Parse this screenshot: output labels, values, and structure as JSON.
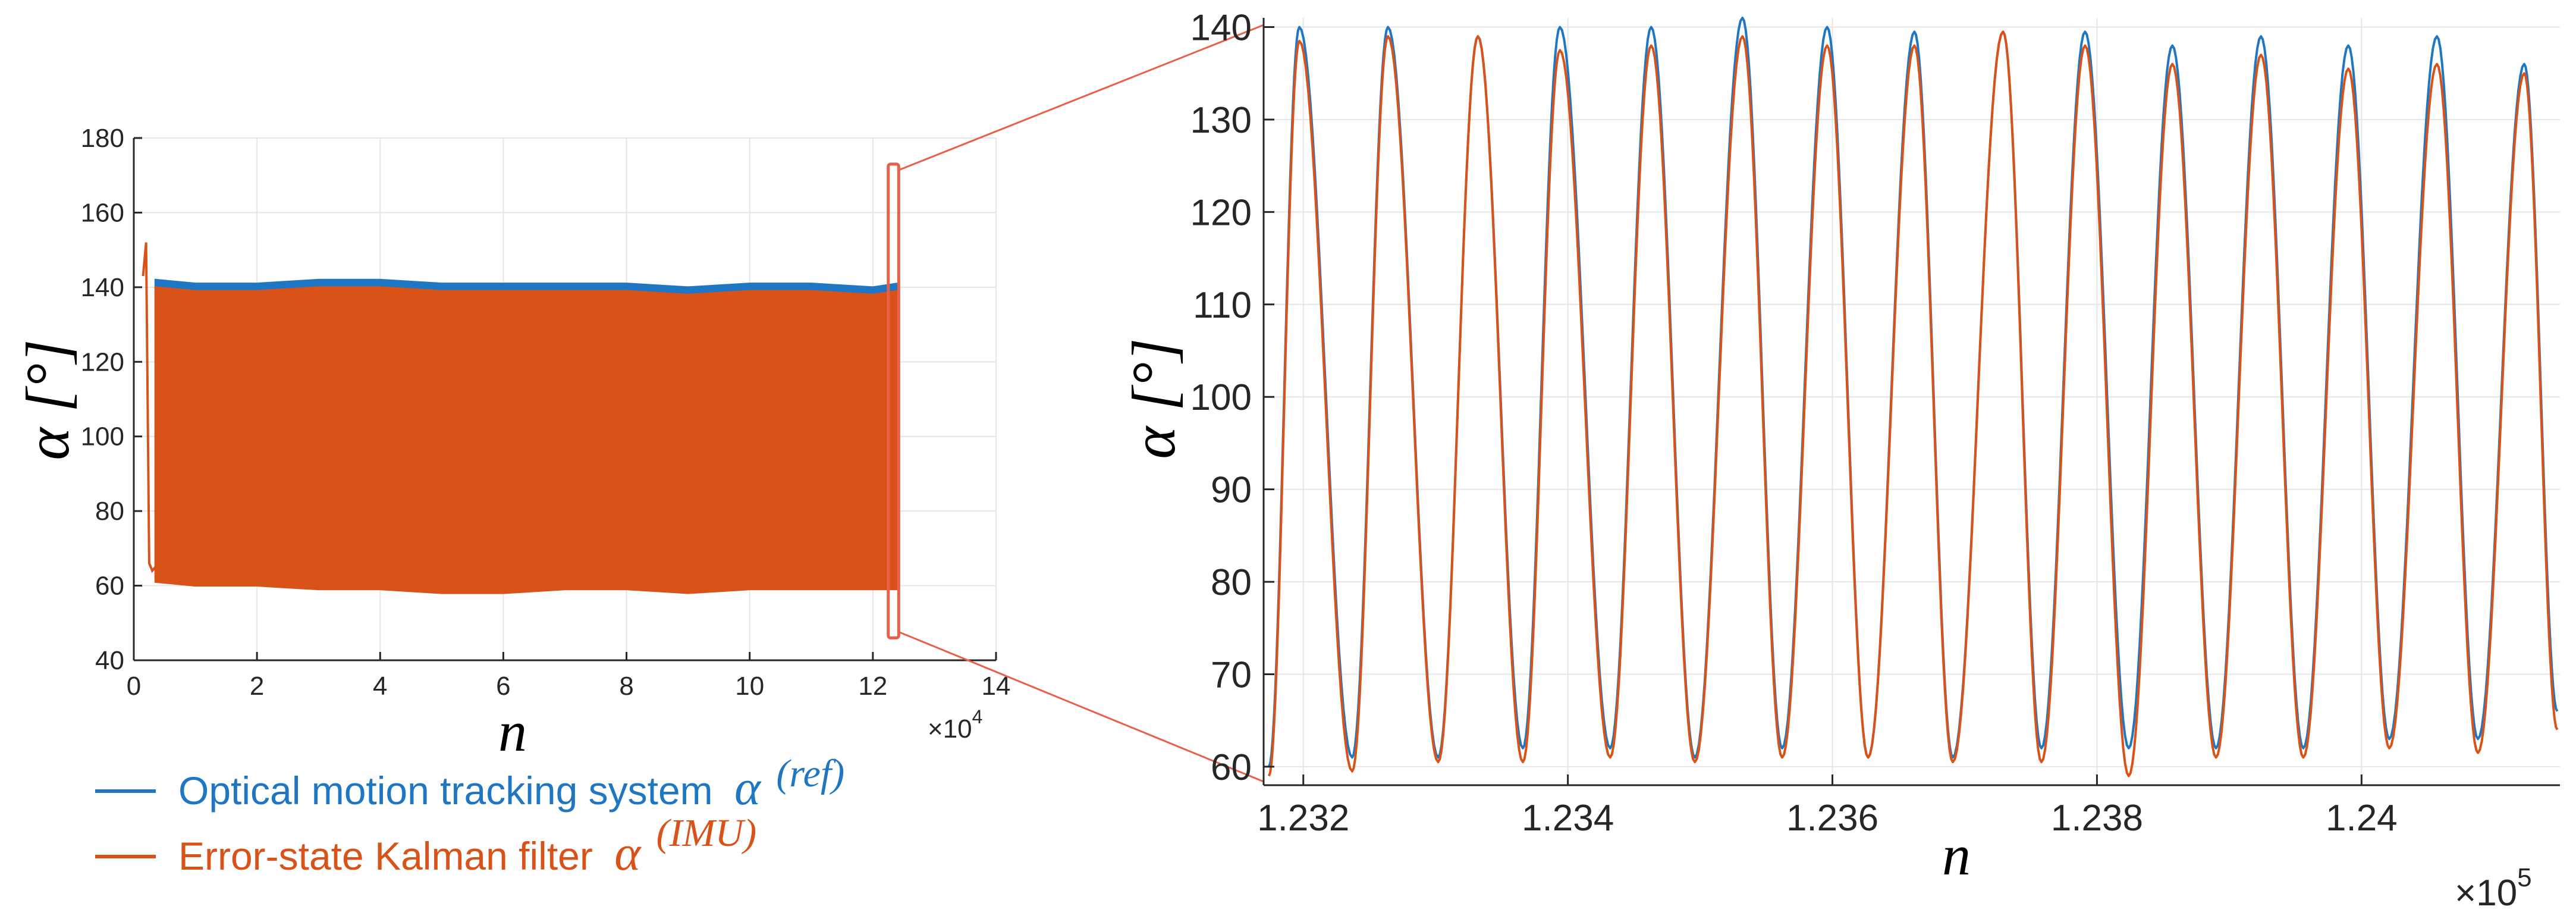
{
  "colors": {
    "ref": "#1f77c4",
    "imu": "#d95319",
    "connector": "#e8604a",
    "grid": "#e6e6e6",
    "axis": "#262626"
  },
  "legend": {
    "items": [
      {
        "label": "Optical motion tracking system",
        "symbol": "α",
        "superscript": "(ref)",
        "color_key": "ref"
      },
      {
        "label": "Error-state Kalman filter",
        "symbol": "α",
        "superscript": "(IMU)",
        "color_key": "imu"
      }
    ]
  },
  "chart_data": [
    {
      "type": "line",
      "panel": "overview",
      "title": "",
      "xlabel": "n",
      "ylabel": "α [°]",
      "x_exponent": "×10^4",
      "xlim": [
        0,
        14
      ],
      "ylim": [
        40,
        180
      ],
      "xticks": [
        0,
        2,
        4,
        6,
        8,
        10,
        12,
        14
      ],
      "xtick_labels": [
        "0",
        "2",
        "4",
        "6",
        "8",
        "10",
        "12",
        "14"
      ],
      "yticks": [
        40,
        60,
        80,
        100,
        120,
        140,
        160,
        180
      ],
      "ytick_labels": [
        "40",
        "60",
        "80",
        "100",
        "120",
        "140",
        "160",
        "180"
      ],
      "grid": true,
      "zoom_box": {
        "x": [
          12.25,
          12.42
        ],
        "y": [
          46,
          173
        ]
      },
      "series": [
        {
          "name": "Optical motion tracking system α(ref)",
          "color_key": "ref",
          "upper_envelope": [
            [
              0.35,
              142
            ],
            [
              1,
              141
            ],
            [
              2,
              141
            ],
            [
              3,
              142
            ],
            [
              4,
              142
            ],
            [
              5,
              141
            ],
            [
              6,
              141
            ],
            [
              7,
              141
            ],
            [
              8,
              141
            ],
            [
              9,
              140
            ],
            [
              10,
              141
            ],
            [
              11,
              141
            ],
            [
              12,
              140
            ],
            [
              12.4,
              141
            ]
          ],
          "lower_envelope": [
            [
              0.35,
              62
            ],
            [
              1,
              61
            ],
            [
              2,
              61
            ],
            [
              3,
              60
            ],
            [
              4,
              60
            ],
            [
              5,
              59
            ],
            [
              6,
              59
            ],
            [
              7,
              60
            ],
            [
              8,
              60
            ],
            [
              9,
              59
            ],
            [
              10,
              60
            ],
            [
              11,
              60
            ],
            [
              12,
              60
            ],
            [
              12.4,
              60
            ]
          ]
        },
        {
          "name": "Error-state Kalman filter α(IMU)",
          "color_key": "imu",
          "upper_envelope": [
            [
              0.35,
              140
            ],
            [
              1,
              139
            ],
            [
              2,
              139
            ],
            [
              3,
              140
            ],
            [
              4,
              140
            ],
            [
              5,
              139
            ],
            [
              6,
              139
            ],
            [
              7,
              139
            ],
            [
              8,
              139
            ],
            [
              9,
              138
            ],
            [
              10,
              139
            ],
            [
              11,
              139
            ],
            [
              12,
              138
            ],
            [
              12.4,
              139
            ]
          ],
          "lower_envelope": [
            [
              0.35,
              61
            ],
            [
              1,
              60
            ],
            [
              2,
              60
            ],
            [
              3,
              59
            ],
            [
              4,
              59
            ],
            [
              5,
              58
            ],
            [
              6,
              58
            ],
            [
              7,
              59
            ],
            [
              8,
              59
            ],
            [
              9,
              58
            ],
            [
              10,
              59
            ],
            [
              11,
              59
            ],
            [
              12,
              59
            ],
            [
              12.4,
              59
            ]
          ],
          "initial_segment": [
            [
              0.15,
              143
            ],
            [
              0.2,
              152
            ],
            [
              0.25,
              66
            ],
            [
              0.3,
              64
            ],
            [
              0.35,
              65
            ]
          ]
        }
      ]
    },
    {
      "type": "line",
      "panel": "zoom",
      "title": "",
      "xlabel": "n",
      "ylabel": "α [°]",
      "x_exponent": "×10^5",
      "xlim": [
        1.2317,
        1.2415
      ],
      "ylim": [
        58,
        141
      ],
      "xticks": [
        1.232,
        1.234,
        1.236,
        1.238,
        1.24
      ],
      "xtick_labels": [
        "1.232",
        "1.234",
        "1.236",
        "1.238",
        "1.24"
      ],
      "yticks": [
        60,
        70,
        80,
        90,
        100,
        110,
        120,
        130,
        140
      ],
      "ytick_labels": [
        "60",
        "70",
        "80",
        "90",
        "100",
        "110",
        "120",
        "130",
        "140"
      ],
      "grid": true,
      "cycles": {
        "troughs_x": [
          1.23174,
          1.23237,
          1.23302,
          1.23366,
          1.23432,
          1.23496,
          1.23562,
          1.23627,
          1.23691,
          1.23758,
          1.23824,
          1.2389,
          1.23956,
          1.24021,
          1.24088,
          1.24148
        ],
        "peaks_x": [
          1.23197,
          1.23264,
          1.23332,
          1.23394,
          1.23463,
          1.23532,
          1.23596,
          1.23662,
          1.23729,
          1.23791,
          1.23857,
          1.23924,
          1.2399,
          1.24057,
          1.24123
        ]
      },
      "series": [
        {
          "name": "Optical motion tracking system α(ref)",
          "color_key": "ref",
          "peaks_y": [
            140,
            140,
            139,
            140,
            140,
            141,
            140,
            139.5,
            139.5,
            139.5,
            138,
            139,
            138,
            139,
            136
          ],
          "troughs_y": [
            60,
            61,
            61,
            62,
            62,
            61,
            62,
            61,
            61,
            62,
            62,
            62,
            62,
            63,
            63,
            66
          ]
        },
        {
          "name": "Error-state Kalman filter α(IMU)",
          "color_key": "imu",
          "peaks_y": [
            138.5,
            139,
            139,
            137.5,
            138,
            139,
            138,
            138,
            139.5,
            138,
            136,
            137,
            135.5,
            136,
            135
          ],
          "troughs_y": [
            59,
            59.5,
            60.5,
            60.5,
            61,
            60.5,
            61,
            61,
            60.5,
            60.5,
            59,
            61,
            61,
            62,
            61.5,
            64
          ]
        }
      ]
    }
  ]
}
